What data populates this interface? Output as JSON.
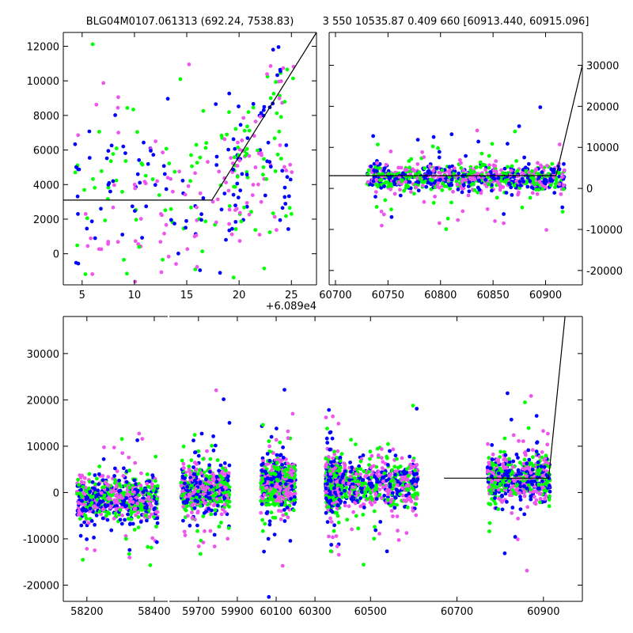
{
  "figure": {
    "title_left": "BLG04M0107.061313 (692.24, 7538.83)",
    "title_right": "3 550 10535.87 0.409 660 [60913.440, 60915.096]"
  },
  "colors": {
    "green": "#00ff00",
    "blue": "#0000ff",
    "magenta": "#ee55ee",
    "line": "#000000"
  },
  "chart_data": [
    {
      "id": "top-left",
      "type": "scatter",
      "x_offset_label": "+6.089e4",
      "xlim": [
        3.2,
        27.4
      ],
      "ylim": [
        -1800,
        12800
      ],
      "xticks": [
        5,
        10,
        15,
        20,
        25
      ],
      "yticks": [
        0,
        2000,
        4000,
        6000,
        8000,
        10000,
        12000
      ],
      "y_axis_side": "left",
      "model_line": {
        "x": [
          3.2,
          17.4,
          27.4
        ],
        "y": [
          3100,
          3100,
          12800
        ]
      }
    },
    {
      "id": "top-right",
      "type": "scatter",
      "xlim": [
        60694,
        60935
      ],
      "ylim": [
        -23500,
        38000
      ],
      "xticks": [
        60700,
        60750,
        60800,
        60850,
        60900
      ],
      "yticks": [
        -20000,
        -10000,
        0,
        10000,
        20000,
        30000
      ],
      "y_axis_side": "right",
      "x_range_data": [
        60730,
        60918
      ],
      "y_center": 2500,
      "y_spread": 1600,
      "model_line": {
        "x": [
          60694,
          60910,
          60935
        ],
        "y": [
          3100,
          3100,
          30000
        ]
      }
    },
    {
      "id": "bottom",
      "type": "scatter",
      "ylim": [
        -23500,
        38000
      ],
      "yticks": [
        -20000,
        -10000,
        0,
        10000,
        20000,
        30000
      ],
      "y_axis_side": "left",
      "broken_x": true,
      "segments": [
        {
          "xlim": [
            58130,
            58440
          ],
          "xticks": [
            58200,
            58400
          ],
          "data": [
            58170,
            58410
          ],
          "center": -1500
        },
        {
          "xlim": [
            59550,
            60430
          ],
          "xticks": [
            59700,
            59900,
            60100,
            60300
          ],
          "clusters": [
            [
              59610,
              59860,
              700
            ],
            [
              60020,
              60200,
              1800
            ],
            [
              60355,
              60430,
              1500
            ]
          ]
        },
        {
          "xlim": [
            60430,
            60990
          ],
          "xticks": [
            60500,
            60700,
            60900
          ],
          "clusters": [
            [
              60430,
              60610,
              1800
            ],
            [
              60770,
              60915,
              3000
            ]
          ]
        }
      ],
      "model_line": {
        "x": [
          60670,
          60912,
          60950
        ],
        "y": [
          3100,
          3100,
          38000
        ]
      }
    }
  ]
}
